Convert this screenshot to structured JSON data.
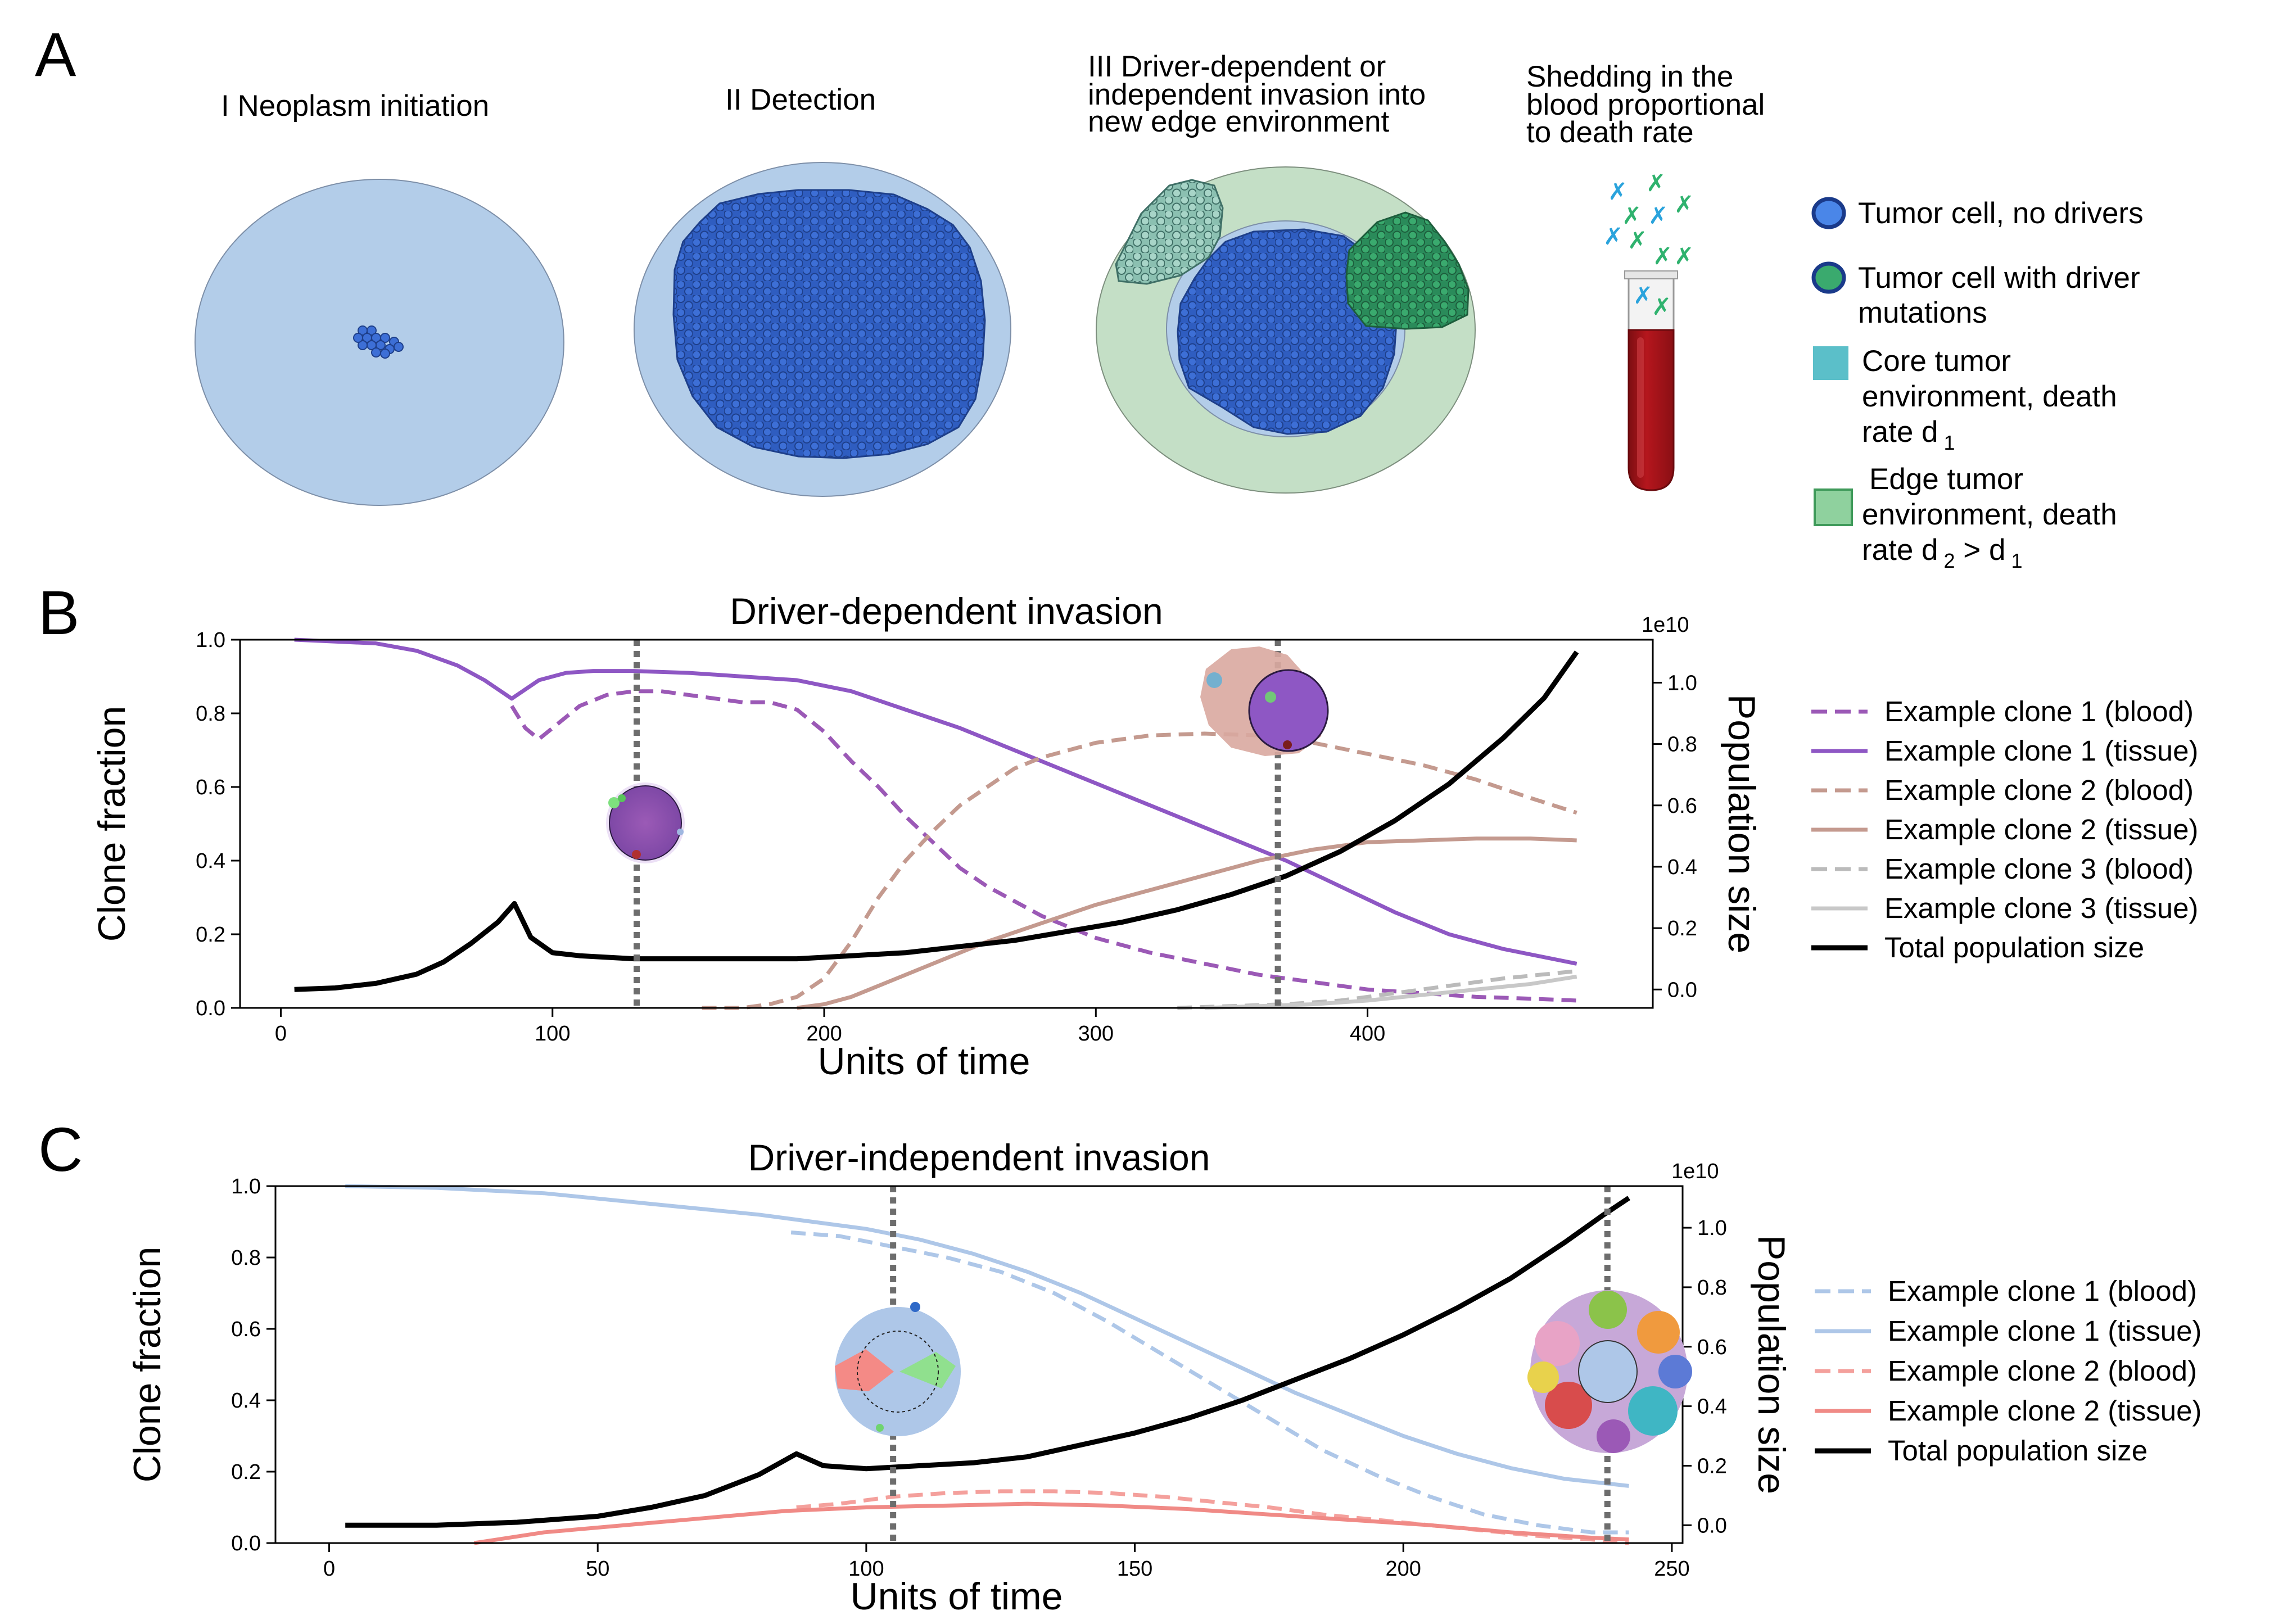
{
  "panel_a": {
    "letter": "A",
    "stage1": "I Neoplasm initiation",
    "stage2": "II Detection",
    "stage3": [
      "III Driver-dependent or",
      "independent invasion into",
      "new edge environment"
    ],
    "shedding": [
      "Shedding in the",
      "blood proportional",
      "to death rate"
    ],
    "legend": {
      "no_drivers": "Tumor cell, no drivers",
      "with_drivers": [
        "Tumor cell with driver",
        "mutations"
      ],
      "core": [
        "Core tumor",
        "environment, death",
        "rate d",
        "1"
      ],
      "edge": [
        "Edge tumor",
        "environment, death",
        "rate d",
        "2",
        " > d",
        "1"
      ]
    },
    "colors": {
      "core_env": "#b3cde9",
      "edge_env": "#c4dfc6",
      "no_driver_cell": "#3d6fd6",
      "driver_cell": "#3aaa6e",
      "driver_cell_light": "#a8d5c8",
      "core_swatch": "#5bbfc9",
      "edge_swatch": "#8fd19e",
      "blood": "#a8141b",
      "dna_blue": "#2aa3dc",
      "dna_green": "#2fb26e"
    }
  },
  "chart_data": [
    {
      "panel": "B",
      "type": "line",
      "title": "Driver-dependent invasion",
      "xlabel": "Units of time",
      "ylabel": "Clone fraction",
      "y2label": "Population size",
      "y2_multiplier": "1e10",
      "xlim": [
        -15,
        505
      ],
      "ylim": [
        0,
        1
      ],
      "y2lim": [
        -0.06,
        1.14
      ],
      "xticks": [
        0,
        100,
        200,
        300,
        400
      ],
      "yticks": [
        0.0,
        0.2,
        0.4,
        0.6,
        0.8,
        1.0
      ],
      "y2ticks": [
        0.0,
        0.2,
        0.4,
        0.6,
        0.8,
        1.0
      ],
      "vlines": [
        131,
        367
      ],
      "legend_position": "outside-right",
      "series": [
        {
          "name": "Example clone 1 (blood)",
          "color": "#9b59b6",
          "dash": "dashed",
          "axis": "left",
          "x": [
            85,
            90,
            95,
            100,
            110,
            120,
            130,
            140,
            150,
            160,
            170,
            180,
            190,
            200,
            210,
            220,
            230,
            240,
            250,
            260,
            270,
            280,
            290,
            300,
            320,
            340,
            360,
            380,
            400,
            420,
            440,
            460,
            477
          ],
          "y": [
            0.82,
            0.76,
            0.73,
            0.76,
            0.82,
            0.85,
            0.86,
            0.86,
            0.85,
            0.84,
            0.83,
            0.83,
            0.81,
            0.75,
            0.67,
            0.6,
            0.52,
            0.45,
            0.38,
            0.33,
            0.29,
            0.25,
            0.22,
            0.19,
            0.15,
            0.12,
            0.09,
            0.07,
            0.05,
            0.04,
            0.03,
            0.025,
            0.02
          ]
        },
        {
          "name": "Example clone 1 (tissue)",
          "color": "#8e57c4",
          "dash": "solid",
          "axis": "left",
          "x": [
            5,
            20,
            35,
            50,
            65,
            75,
            85,
            95,
            105,
            115,
            130,
            150,
            170,
            190,
            210,
            230,
            250,
            270,
            290,
            310,
            330,
            350,
            370,
            390,
            410,
            430,
            450,
            477
          ],
          "y": [
            1.0,
            0.995,
            0.99,
            0.97,
            0.93,
            0.89,
            0.84,
            0.89,
            0.91,
            0.915,
            0.915,
            0.91,
            0.9,
            0.89,
            0.86,
            0.81,
            0.76,
            0.7,
            0.64,
            0.58,
            0.52,
            0.46,
            0.4,
            0.33,
            0.26,
            0.2,
            0.16,
            0.12
          ]
        },
        {
          "name": "Example clone 2 (blood)",
          "color": "#c49a8f",
          "dash": "dashed",
          "axis": "left",
          "x": [
            155,
            170,
            180,
            190,
            200,
            210,
            220,
            230,
            240,
            250,
            260,
            270,
            280,
            290,
            300,
            310,
            320,
            340,
            360,
            380,
            400,
            420,
            440,
            460,
            477
          ],
          "y": [
            0.0,
            0.0,
            0.01,
            0.03,
            0.08,
            0.18,
            0.3,
            0.4,
            0.48,
            0.55,
            0.6,
            0.65,
            0.68,
            0.7,
            0.72,
            0.73,
            0.74,
            0.745,
            0.74,
            0.72,
            0.69,
            0.66,
            0.62,
            0.57,
            0.53
          ]
        },
        {
          "name": "Example clone 2 (tissue)",
          "color": "#c49a8f",
          "dash": "solid",
          "axis": "left",
          "x": [
            190,
            200,
            210,
            220,
            240,
            260,
            280,
            300,
            320,
            340,
            360,
            380,
            400,
            420,
            440,
            460,
            477
          ],
          "y": [
            0.0,
            0.01,
            0.03,
            0.06,
            0.12,
            0.18,
            0.23,
            0.28,
            0.32,
            0.36,
            0.4,
            0.43,
            0.45,
            0.455,
            0.46,
            0.46,
            0.455
          ]
        },
        {
          "name": "Example clone 3 (blood)",
          "color": "#bbbbbb",
          "dash": "dashed",
          "axis": "left",
          "x": [
            330,
            350,
            370,
            390,
            410,
            430,
            450,
            477
          ],
          "y": [
            0.0,
            0.005,
            0.01,
            0.02,
            0.04,
            0.06,
            0.08,
            0.1
          ]
        },
        {
          "name": "Example clone 3 (tissue)",
          "color": "#c8c8c8",
          "dash": "solid",
          "axis": "left",
          "x": [
            340,
            360,
            380,
            400,
            420,
            440,
            460,
            477
          ],
          "y": [
            0.0,
            0.005,
            0.01,
            0.02,
            0.035,
            0.05,
            0.065,
            0.085
          ]
        },
        {
          "name": "Total population size",
          "color": "#000000",
          "dash": "solid",
          "axis": "right",
          "x": [
            5,
            20,
            35,
            50,
            60,
            70,
            80,
            86,
            92,
            100,
            110,
            130,
            150,
            170,
            190,
            210,
            230,
            250,
            270,
            290,
            310,
            330,
            350,
            370,
            390,
            410,
            430,
            450,
            465,
            477
          ],
          "y": [
            0.0,
            0.005,
            0.02,
            0.05,
            0.09,
            0.15,
            0.22,
            0.28,
            0.17,
            0.12,
            0.11,
            0.1,
            0.1,
            0.1,
            0.1,
            0.11,
            0.12,
            0.14,
            0.16,
            0.19,
            0.22,
            0.26,
            0.31,
            0.37,
            0.45,
            0.55,
            0.67,
            0.82,
            0.95,
            1.1
          ]
        }
      ]
    },
    {
      "panel": "C",
      "type": "line",
      "title": "Driver-independent invasion",
      "xlabel": "Units of time",
      "ylabel": "Clone fraction",
      "y2label": "Population size",
      "y2_multiplier": "1e10",
      "xlim": [
        -10,
        252
      ],
      "ylim": [
        0,
        1
      ],
      "y2lim": [
        -0.06,
        1.14
      ],
      "xticks": [
        0,
        50,
        100,
        150,
        200,
        250
      ],
      "yticks": [
        0.0,
        0.2,
        0.4,
        0.6,
        0.8,
        1.0
      ],
      "y2ticks": [
        0.0,
        0.2,
        0.4,
        0.6,
        0.8,
        1.0
      ],
      "vlines": [
        105,
        238
      ],
      "legend_position": "outside-right",
      "series": [
        {
          "name": "Example clone 1 (blood)",
          "color": "#aec7e8",
          "dash": "dashed",
          "axis": "left",
          "x": [
            86,
            95,
            105,
            115,
            125,
            135,
            145,
            155,
            165,
            175,
            185,
            195,
            205,
            215,
            225,
            235,
            242
          ],
          "y": [
            0.87,
            0.86,
            0.83,
            0.8,
            0.76,
            0.7,
            0.62,
            0.53,
            0.44,
            0.35,
            0.26,
            0.19,
            0.13,
            0.08,
            0.05,
            0.03,
            0.03
          ]
        },
        {
          "name": "Example clone 1 (tissue)",
          "color": "#aec7e8",
          "dash": "solid",
          "axis": "left",
          "x": [
            3,
            20,
            40,
            60,
            80,
            100,
            110,
            120,
            130,
            140,
            150,
            160,
            170,
            180,
            190,
            200,
            210,
            220,
            230,
            242
          ],
          "y": [
            1.0,
            0.995,
            0.98,
            0.95,
            0.92,
            0.88,
            0.85,
            0.81,
            0.76,
            0.7,
            0.63,
            0.56,
            0.49,
            0.42,
            0.36,
            0.3,
            0.25,
            0.21,
            0.18,
            0.16
          ]
        },
        {
          "name": "Example clone 2 (blood)",
          "color": "#f4a09c",
          "dash": "dashed",
          "axis": "left",
          "x": [
            87,
            95,
            105,
            115,
            125,
            135,
            145,
            155,
            165,
            175,
            185,
            195,
            205,
            215,
            225,
            235,
            242
          ],
          "y": [
            0.1,
            0.11,
            0.13,
            0.14,
            0.145,
            0.145,
            0.14,
            0.13,
            0.115,
            0.1,
            0.08,
            0.065,
            0.05,
            0.035,
            0.02,
            0.01,
            0.0
          ]
        },
        {
          "name": "Example clone 2 (tissue)",
          "color": "#f08a86",
          "dash": "solid",
          "axis": "left",
          "x": [
            27,
            40,
            55,
            70,
            85,
            100,
            115,
            130,
            145,
            160,
            175,
            190,
            205,
            220,
            235,
            242
          ],
          "y": [
            0.0,
            0.03,
            0.05,
            0.07,
            0.09,
            0.1,
            0.105,
            0.11,
            0.105,
            0.095,
            0.08,
            0.065,
            0.05,
            0.03,
            0.015,
            0.01
          ]
        },
        {
          "name": "Total population size",
          "color": "#000000",
          "dash": "solid",
          "axis": "right",
          "x": [
            3,
            20,
            35,
            50,
            60,
            70,
            80,
            87,
            92,
            100,
            110,
            120,
            130,
            140,
            150,
            160,
            170,
            180,
            190,
            200,
            210,
            220,
            230,
            237,
            242
          ],
          "y": [
            0.0,
            0.0,
            0.01,
            0.03,
            0.06,
            0.1,
            0.17,
            0.24,
            0.2,
            0.19,
            0.2,
            0.21,
            0.23,
            0.27,
            0.31,
            0.36,
            0.42,
            0.49,
            0.56,
            0.64,
            0.73,
            0.83,
            0.95,
            1.04,
            1.1
          ]
        }
      ]
    }
  ],
  "panel_b_letter": "B",
  "panel_c_letter": "C"
}
